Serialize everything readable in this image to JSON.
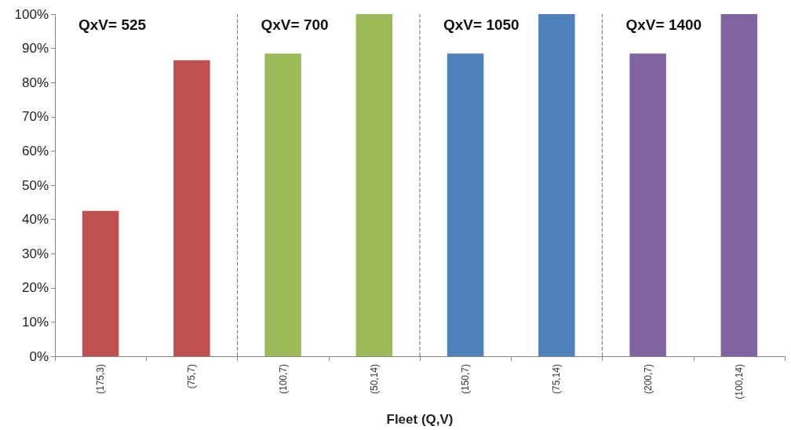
{
  "chart_data": {
    "type": "bar",
    "xlabel": "Fleet (Q,V)",
    "categories": [
      "(175,3)",
      "(75,7)",
      "(100,7)",
      "(50,14)",
      "(150,7)",
      "(75,14)",
      "(200,7)",
      "(100,14)"
    ],
    "values": [
      42.5,
      86.5,
      88.5,
      100,
      88.5,
      100,
      88.5,
      100
    ],
    "colors": [
      "#c0504d",
      "#c0504d",
      "#9bbb59",
      "#9bbb59",
      "#4f81bd",
      "#4f81bd",
      "#8064a2",
      "#8064a2"
    ],
    "ylim": [
      0,
      100
    ],
    "yticks": [
      {
        "value": 0,
        "label": "0%"
      },
      {
        "value": 10,
        "label": "10%"
      },
      {
        "value": 20,
        "label": "20%"
      },
      {
        "value": 30,
        "label": "30%"
      },
      {
        "value": 40,
        "label": "40%"
      },
      {
        "value": 50,
        "label": "50%"
      },
      {
        "value": 60,
        "label": "60%"
      },
      {
        "value": 70,
        "label": "70%"
      },
      {
        "value": 80,
        "label": "80%"
      },
      {
        "value": 90,
        "label": "90%"
      },
      {
        "value": 100,
        "label": "100%"
      }
    ],
    "annotations": [
      "QxV= 525",
      "QxV= 700",
      "QxV= 1050",
      "QxV= 1400"
    ],
    "grid": false
  }
}
